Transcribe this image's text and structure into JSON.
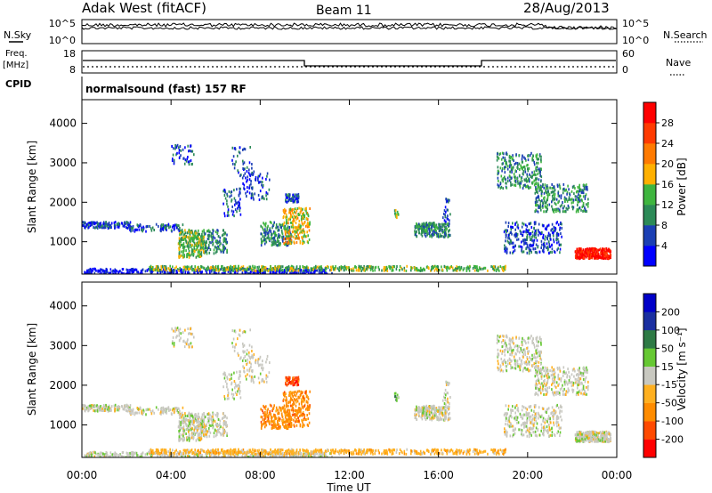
{
  "header": {
    "station": "Adak West (fitACF)",
    "beam": "Beam 11",
    "date": "28/Aug/2013"
  },
  "labels": {
    "nsky": "N.Sky",
    "nsearch": "N.Search",
    "freq_top": "Freq.",
    "freq_unit": "[MHz]",
    "nave": "Nave",
    "cpid": "CPID",
    "cpid_value": "normalsound (fast) 157 RF",
    "xlabel": "Time UT"
  },
  "noise_panel": {
    "left_ticks": [
      "10^5",
      "10^0"
    ],
    "right_ticks": [
      "10^5",
      "10^0"
    ]
  },
  "freq_panel": {
    "left_ticks": [
      "18",
      "8"
    ],
    "right_ticks": [
      "60",
      "0"
    ]
  },
  "colors": {
    "power": [
      "#0000ff",
      "#1b3fb4",
      "#2c8a57",
      "#3fb53f",
      "#ffb000",
      "#ff7a00",
      "#ff3a00",
      "#ff0000"
    ],
    "velocity": [
      "#ff0000",
      "#ff4a00",
      "#ff8c00",
      "#ffb020",
      "#c8c8c0",
      "#66c833",
      "#2e7a45",
      "#1a2fa0",
      "#0000c8"
    ]
  },
  "chart_data": [
    {
      "type": "heatmap",
      "name": "power",
      "ylabel": "Slant Range [km]",
      "xlabel": "Time UT",
      "x_ticks": [
        "00:00",
        "04:00",
        "08:00",
        "12:00",
        "16:00",
        "20:00",
        "00:00"
      ],
      "y_ticks": [
        1000,
        2000,
        3000,
        4000
      ],
      "ylim": [
        180,
        4600
      ],
      "colorbar_label": "Power [dB]",
      "colorbar_ticks": [
        4,
        8,
        12,
        16,
        20,
        24,
        28
      ]
    },
    {
      "type": "heatmap",
      "name": "velocity",
      "ylabel": "Slant Range [km]",
      "xlabel": "Time UT",
      "x_ticks": [
        "00:00",
        "04:00",
        "08:00",
        "12:00",
        "16:00",
        "20:00",
        "00:00"
      ],
      "y_ticks": [
        1000,
        2000,
        3000,
        4000
      ],
      "ylim": [
        180,
        4600
      ],
      "colorbar_label": "Velocity [m s⁻¹]",
      "colorbar_ticks": [
        -200,
        -100,
        -50,
        -15,
        15,
        50,
        100,
        200
      ]
    }
  ]
}
